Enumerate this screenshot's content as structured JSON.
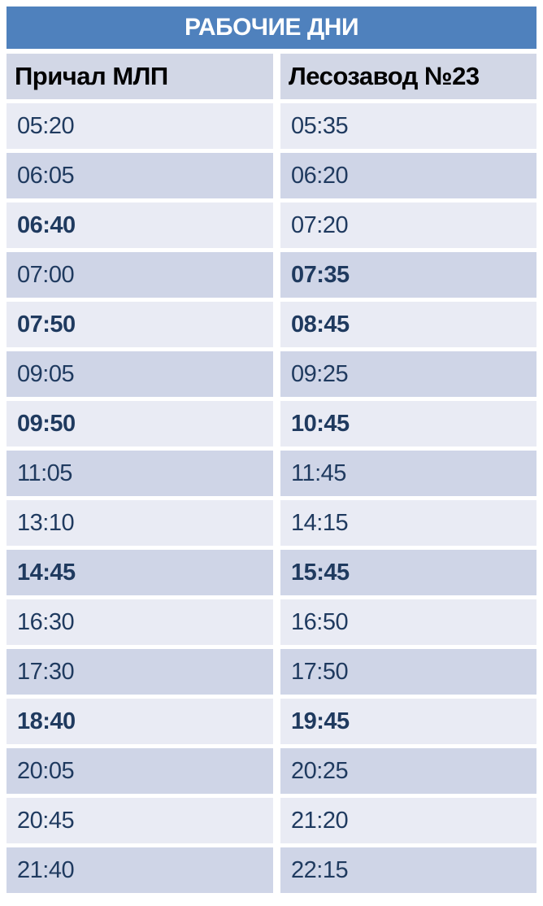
{
  "title": "РАБОЧИЕ ДНИ",
  "columns": [
    {
      "label": "Причал МЛП"
    },
    {
      "label": "Лесозавод №23"
    }
  ],
  "rows": [
    {
      "departure": "05:20",
      "arrival": "05:35",
      "departure_bold": false,
      "arrival_bold": false
    },
    {
      "departure": "06:05",
      "arrival": "06:20",
      "departure_bold": false,
      "arrival_bold": false
    },
    {
      "departure": "06:40",
      "arrival": "07:20",
      "departure_bold": true,
      "arrival_bold": false
    },
    {
      "departure": "07:00",
      "arrival": "07:35",
      "departure_bold": false,
      "arrival_bold": true
    },
    {
      "departure": "07:50",
      "arrival": "08:45",
      "departure_bold": true,
      "arrival_bold": true
    },
    {
      "departure": "09:05",
      "arrival": "09:25",
      "departure_bold": false,
      "arrival_bold": false
    },
    {
      "departure": "09:50",
      "arrival": "10:45",
      "departure_bold": true,
      "arrival_bold": true
    },
    {
      "departure": "11:05",
      "arrival": "11:45",
      "departure_bold": false,
      "arrival_bold": false
    },
    {
      "departure": "13:10",
      "arrival": "14:15",
      "departure_bold": false,
      "arrival_bold": false
    },
    {
      "departure": "14:45",
      "arrival": "15:45",
      "departure_bold": true,
      "arrival_bold": true
    },
    {
      "departure": "16:30",
      "arrival": "16:50",
      "departure_bold": false,
      "arrival_bold": false
    },
    {
      "departure": "17:30",
      "arrival": "17:50",
      "departure_bold": false,
      "arrival_bold": false
    },
    {
      "departure": "18:40",
      "arrival": "19:45",
      "departure_bold": true,
      "arrival_bold": true
    },
    {
      "departure": "20:05",
      "arrival": "20:25",
      "departure_bold": false,
      "arrival_bold": false
    },
    {
      "departure": "20:45",
      "arrival": "21:20",
      "departure_bold": false,
      "arrival_bold": false
    },
    {
      "departure": "21:40",
      "arrival": "22:15",
      "departure_bold": false,
      "arrival_bold": false
    }
  ],
  "colors": {
    "title_bg": "#4f81bd",
    "title_text": "#ffffff",
    "column_header_bg": "#d2d7e6",
    "column_header_text": "#000000",
    "row_light_bg": "#e9ebf4",
    "row_dark_bg": "#cfd5e7",
    "time_text": "#1f3a5f"
  }
}
